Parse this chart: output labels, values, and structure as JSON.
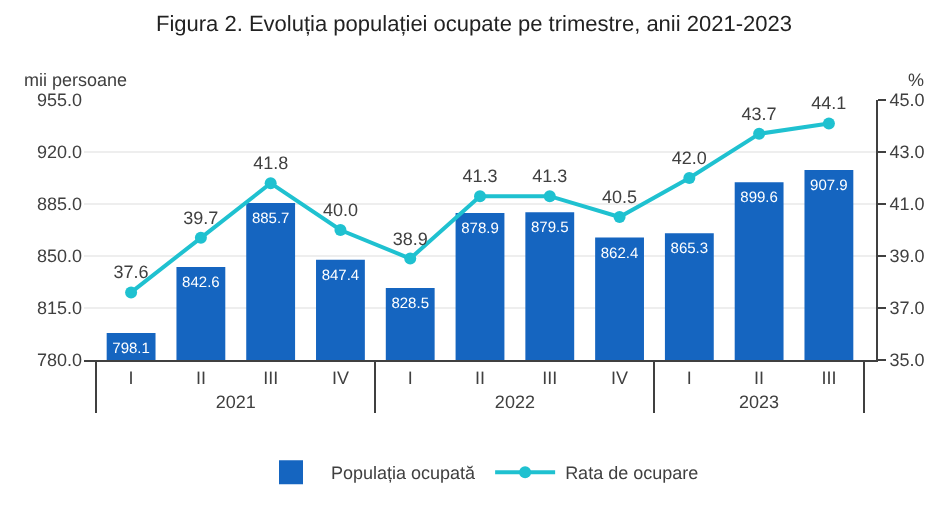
{
  "chart_data": {
    "type": "bar",
    "title": "Figura 2. Evoluția populației ocupate pe trimestre, anii 2021-2023",
    "ylabel": "mii persoane",
    "y2label": "%",
    "categories": [
      "I",
      "II",
      "III",
      "IV",
      "I",
      "II",
      "III",
      "IV",
      "I",
      "II",
      "III"
    ],
    "annotations": [
      "2021",
      "2022",
      "2023"
    ],
    "series": [
      {
        "name": "Populația ocupată",
        "color": "#1565c0",
        "values": [
          798.1,
          842.6,
          885.7,
          847.4,
          828.5,
          878.9,
          879.5,
          862.4,
          865.3,
          899.6,
          907.9
        ],
        "value_labels": [
          "798.1",
          "842.6",
          "885.7",
          "847.4",
          "828.5",
          "878.9",
          "879.5",
          "862.4",
          "865.3",
          "899.6",
          "907.9"
        ]
      },
      {
        "name": "Rata de ocupare",
        "type": "line",
        "axis": "y2",
        "color": "#1fc1d0",
        "marker": "circle",
        "values": [
          37.6,
          39.7,
          41.8,
          40.0,
          38.9,
          41.3,
          41.3,
          40.5,
          42.0,
          43.7,
          44.1
        ],
        "value_labels": [
          "37.6",
          "39.7",
          "41.8",
          "40.0",
          "38.9",
          "41.3",
          "41.3",
          "40.5",
          "42.0",
          "43.7",
          "44.1"
        ]
      }
    ],
    "ylim": [
      780,
      955
    ],
    "yticks": [
      {
        "value": 780,
        "label": "780.0"
      },
      {
        "value": 815,
        "label": "815.0"
      },
      {
        "value": 850,
        "label": "850.0"
      },
      {
        "value": 885,
        "label": "885.0"
      },
      {
        "value": 920,
        "label": "920.0"
      },
      {
        "value": 955,
        "label": "955.0"
      }
    ],
    "y2lim": [
      35,
      45
    ],
    "y2ticks": [
      {
        "value": 35,
        "label": "35.0"
      },
      {
        "value": 37,
        "label": "37.0"
      },
      {
        "value": 39,
        "label": "39.0"
      },
      {
        "value": 41,
        "label": "41.0"
      },
      {
        "value": 43,
        "label": "43.0"
      },
      {
        "value": 45,
        "label": "45.0"
      }
    ],
    "grid": "y",
    "legend": "bottom"
  }
}
